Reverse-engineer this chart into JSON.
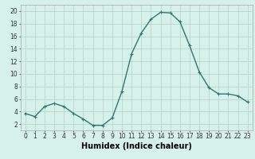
{
  "x": [
    0,
    1,
    2,
    3,
    4,
    5,
    6,
    7,
    8,
    9,
    10,
    11,
    12,
    13,
    14,
    15,
    16,
    17,
    18,
    19,
    20,
    21,
    22,
    23
  ],
  "y": [
    3.7,
    3.2,
    4.8,
    5.3,
    4.8,
    3.7,
    2.8,
    1.8,
    1.8,
    3.0,
    7.2,
    13.2,
    16.5,
    18.7,
    19.8,
    19.7,
    18.3,
    14.5,
    10.3,
    7.8,
    6.8,
    6.8,
    6.5,
    5.5
  ],
  "line_color": "#2d7a6e",
  "marker": "+",
  "marker_size": 3.5,
  "marker_linewidth": 0.8,
  "xlabel": "Humidex (Indice chaleur)",
  "xlim": [
    -0.5,
    23.5
  ],
  "ylim": [
    1,
    21
  ],
  "yticks": [
    2,
    4,
    6,
    8,
    10,
    12,
    14,
    16,
    18,
    20
  ],
  "xticks": [
    0,
    1,
    2,
    3,
    4,
    5,
    6,
    7,
    8,
    9,
    10,
    11,
    12,
    13,
    14,
    15,
    16,
    17,
    18,
    19,
    20,
    21,
    22,
    23
  ],
  "bg_color": "#d6f0ea",
  "grid_color": "#b8d8d0",
  "tick_label_fontsize": 5.5,
  "xlabel_fontsize": 7,
  "line_width": 1.0
}
